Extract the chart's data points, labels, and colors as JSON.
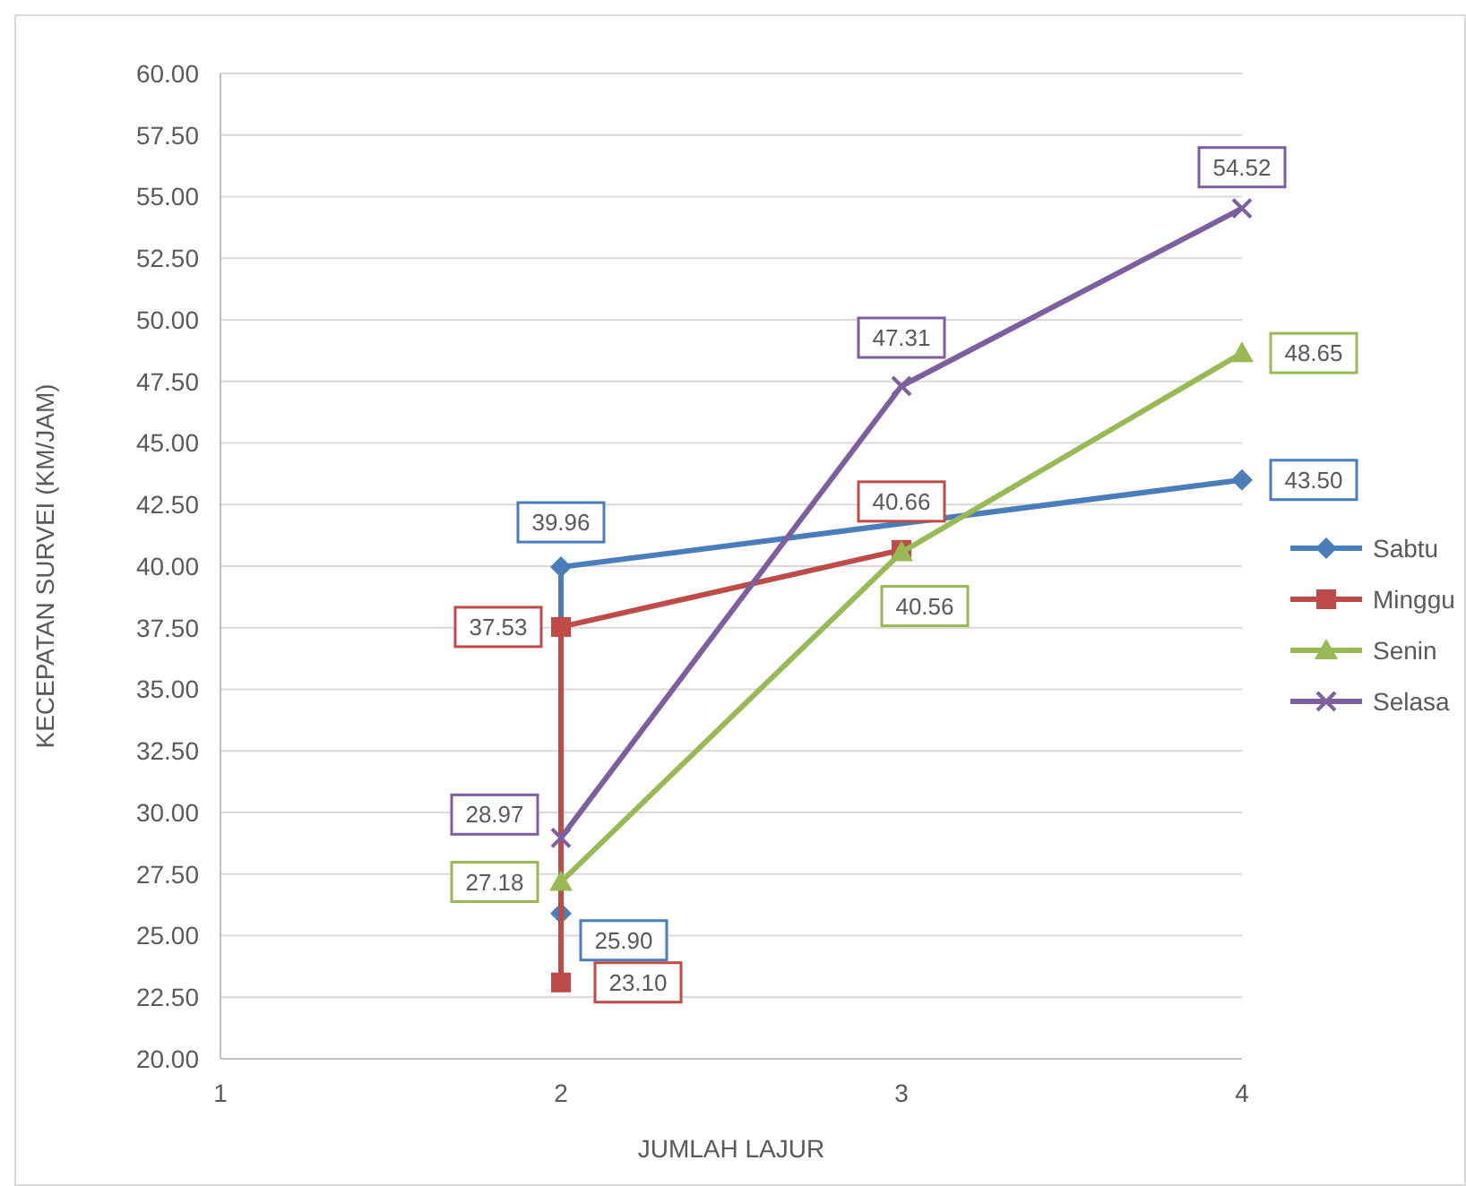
{
  "chart_data": {
    "type": "line",
    "xlabel": "JUMLAH LAJUR",
    "ylabel": "KECEPATAN SURVEI (KM/JAM)",
    "xlim": [
      1,
      4
    ],
    "xticks": [
      1,
      2,
      3,
      4
    ],
    "ylim": [
      20,
      60
    ],
    "yticks": [
      {
        "value": 20,
        "label": "20.00"
      },
      {
        "value": 22.5,
        "label": "22.50"
      },
      {
        "value": 25,
        "label": "25.00"
      },
      {
        "value": 27.5,
        "label": "27.50"
      },
      {
        "value": 30,
        "label": "30.00"
      },
      {
        "value": 32.5,
        "label": "32.50"
      },
      {
        "value": 35,
        "label": "35.00"
      },
      {
        "value": 37.5,
        "label": "37.50"
      },
      {
        "value": 40,
        "label": "40.00"
      },
      {
        "value": 42.5,
        "label": "42.50"
      },
      {
        "value": 45,
        "label": "45.00"
      },
      {
        "value": 47.5,
        "label": "47.50"
      },
      {
        "value": 50,
        "label": "50.00"
      },
      {
        "value": 52.5,
        "label": "52.50"
      },
      {
        "value": 55,
        "label": "55.00"
      },
      {
        "value": 57.5,
        "label": "57.50"
      },
      {
        "value": 60,
        "label": "60.00"
      }
    ],
    "grid": "y",
    "legend": "right",
    "line_style": "solid",
    "series": [
      {
        "name": "Sabtu",
        "color": "#4a7ebb",
        "marker": "diamond",
        "x": [
          2,
          2,
          4
        ],
        "values": [
          25.9,
          39.96,
          43.5
        ],
        "value_labels": [
          "25.90",
          "39.96",
          "43.50"
        ]
      },
      {
        "name": "Minggu",
        "color": "#be4b48",
        "marker": "square",
        "x": [
          2,
          2,
          3
        ],
        "values": [
          23.1,
          37.53,
          40.66
        ],
        "value_labels": [
          "23.10",
          "37.53",
          "40.66"
        ]
      },
      {
        "name": "Senin",
        "color": "#98b954",
        "marker": "triangle",
        "x": [
          2,
          3,
          4
        ],
        "values": [
          27.18,
          40.56,
          48.65
        ],
        "value_labels": [
          "27.18",
          "40.56",
          "48.65"
        ]
      },
      {
        "name": "Selasa",
        "color": "#7d5fa0",
        "marker": "cross",
        "x": [
          2,
          3,
          4
        ],
        "values": [
          28.97,
          47.31,
          54.52
        ],
        "value_labels": [
          "28.97",
          "47.31",
          "54.52"
        ]
      }
    ]
  }
}
